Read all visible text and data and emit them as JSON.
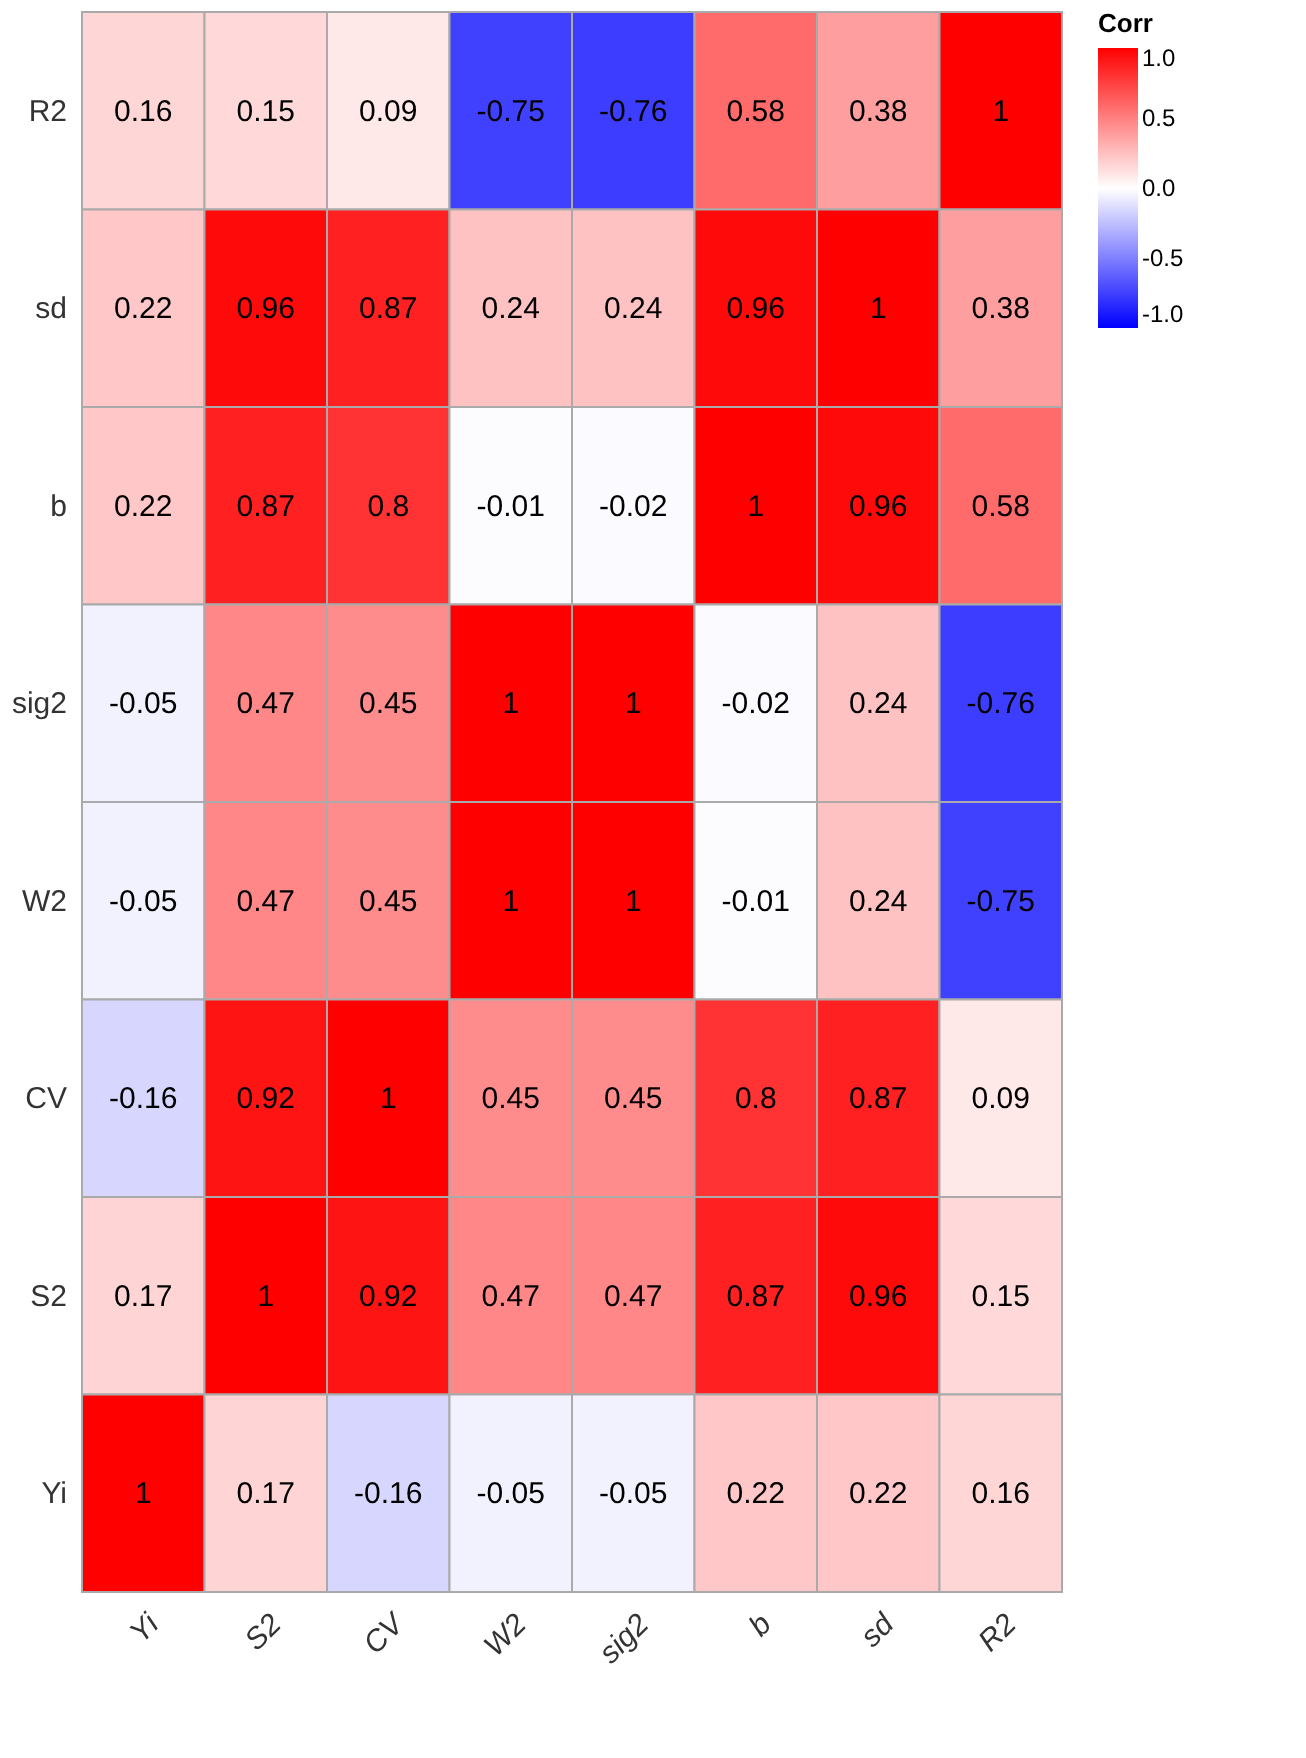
{
  "chart_data": {
    "type": "heatmap",
    "categories": [
      "Yi",
      "S2",
      "CV",
      "W2",
      "sig2",
      "b",
      "sd",
      "R2"
    ],
    "y_categories": [
      "R2",
      "sd",
      "b",
      "sig2",
      "W2",
      "CV",
      "S2",
      "Yi"
    ],
    "cells": [
      [
        0.16,
        0.15,
        0.09,
        -0.75,
        -0.76,
        0.58,
        0.38,
        1
      ],
      [
        0.22,
        0.96,
        0.87,
        0.24,
        0.24,
        0.96,
        1,
        0.38
      ],
      [
        0.22,
        0.87,
        0.8,
        -0.01,
        -0.02,
        1,
        0.96,
        0.58
      ],
      [
        -0.05,
        0.47,
        0.45,
        1,
        1,
        -0.02,
        0.24,
        -0.76
      ],
      [
        -0.05,
        0.47,
        0.45,
        1,
        1,
        -0.01,
        0.24,
        -0.75
      ],
      [
        -0.16,
        0.92,
        1,
        0.45,
        0.45,
        0.8,
        0.87,
        0.09
      ],
      [
        0.17,
        1,
        0.92,
        0.47,
        0.47,
        0.87,
        0.96,
        0.15
      ],
      [
        1,
        0.17,
        -0.16,
        -0.05,
        -0.05,
        0.22,
        0.22,
        0.16
      ]
    ],
    "data_labels": true,
    "clim": [
      -1,
      1
    ],
    "cticks": [
      {
        "value": -1,
        "label": "-1.0"
      },
      {
        "value": -0.5,
        "label": "-0.5"
      },
      {
        "value": 0,
        "label": "0.0"
      },
      {
        "value": 0.5,
        "label": "0.5"
      },
      {
        "value": 1,
        "label": "1.0"
      }
    ],
    "colors": [
      "#0000ff",
      "#ffffff",
      "#ff0000"
    ],
    "clabel": "Corr"
  }
}
